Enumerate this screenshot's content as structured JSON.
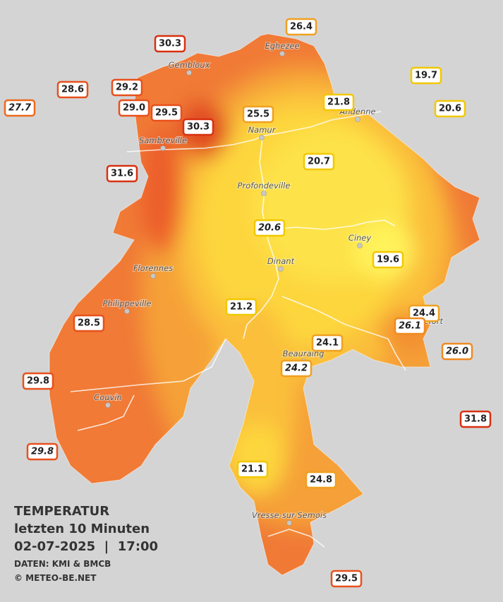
{
  "map": {
    "title": "TEMPERATUR",
    "subtitle": "letzten 10 Minuten",
    "datetime": "02-07-2025  |  17:00",
    "source": "DATEN: KMI & BMCB",
    "credit": "© METEO-BE.NET",
    "towns": [
      "Eghezee",
      "Gembloux",
      "Andenne",
      "Namur",
      "Sambreville",
      "Profondeville",
      "Ciney",
      "Dinant",
      "Florennes",
      "Philippeville",
      "Beauraing",
      "Rochefort",
      "Couvin",
      "Vresse-sur-Semois"
    ],
    "stations": [
      {
        "value": "26.4",
        "color": "#f0a020",
        "italic": false
      },
      {
        "value": "30.3",
        "color": "#d83010",
        "italic": false
      },
      {
        "value": "19.7",
        "color": "#f2c800",
        "italic": false
      },
      {
        "value": "28.6",
        "color": "#e8501c",
        "italic": false
      },
      {
        "value": "29.2",
        "color": "#e8501c",
        "italic": false
      },
      {
        "value": "27.7",
        "color": "#ec6a1c",
        "italic": true
      },
      {
        "value": "29.0",
        "color": "#e8501c",
        "italic": false
      },
      {
        "value": "29.5",
        "color": "#e8501c",
        "italic": false
      },
      {
        "value": "21.8",
        "color": "#f2c800",
        "italic": false
      },
      {
        "value": "20.6",
        "color": "#f2c800",
        "italic": false
      },
      {
        "value": "25.5",
        "color": "#f0a020",
        "italic": false
      },
      {
        "value": "30.3",
        "color": "#d83010",
        "italic": false
      },
      {
        "value": "31.6",
        "color": "#d83010",
        "italic": false
      },
      {
        "value": "20.7",
        "color": "#f2c800",
        "italic": false
      },
      {
        "value": "20.6",
        "color": "#f2c800",
        "italic": true
      },
      {
        "value": "19.6",
        "color": "#f2c800",
        "italic": false
      },
      {
        "value": "21.2",
        "color": "#f2c800",
        "italic": false
      },
      {
        "value": "24.4",
        "color": "#f0a020",
        "italic": false
      },
      {
        "value": "26.1",
        "color": "#f08a20",
        "italic": true
      },
      {
        "value": "28.5",
        "color": "#e8501c",
        "italic": false
      },
      {
        "value": "24.1",
        "color": "#f0a020",
        "italic": false
      },
      {
        "value": "26.0",
        "color": "#f08a20",
        "italic": true
      },
      {
        "value": "24.2",
        "color": "#f0a020",
        "italic": true
      },
      {
        "value": "29.8",
        "color": "#e8501c",
        "italic": false
      },
      {
        "value": "31.8",
        "color": "#d83010",
        "italic": false
      },
      {
        "value": "29.8",
        "color": "#e8501c",
        "italic": true
      },
      {
        "value": "21.1",
        "color": "#f2c800",
        "italic": false
      },
      {
        "value": "24.8",
        "color": "#f0a020",
        "italic": false
      },
      {
        "value": "29.5",
        "color": "#e8501c",
        "italic": false
      }
    ]
  }
}
